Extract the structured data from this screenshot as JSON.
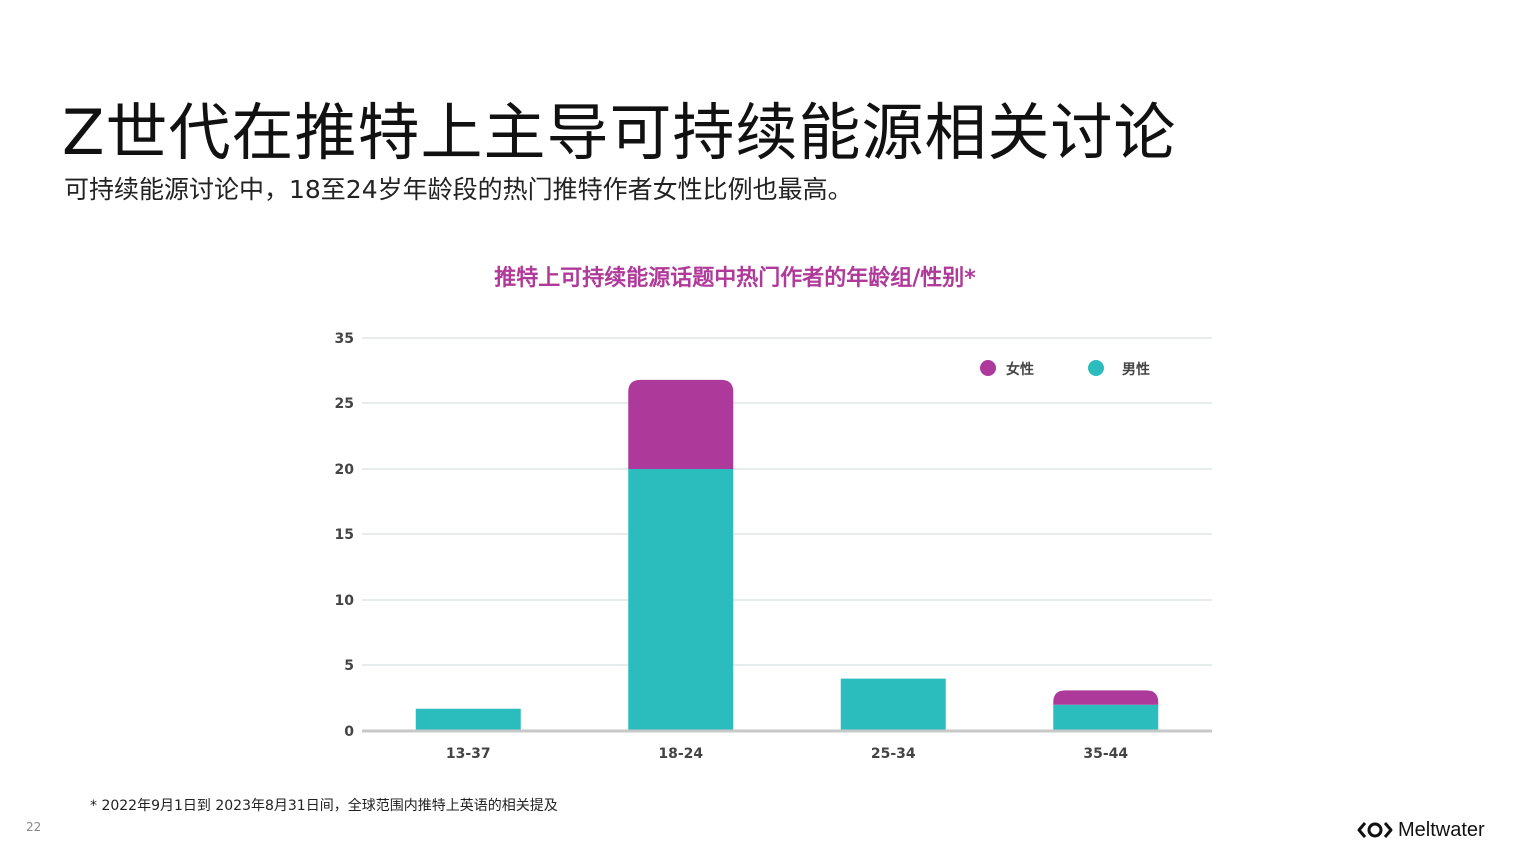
{
  "slide": {
    "title": "Z世代在推特上主导可持续能源相关讨论",
    "subtitle": "可持续能源讨论中，18至24岁年龄段的热门推特作者女性比例也最高。",
    "footnote": "* 2022年9月1日到 2023年8月31日间，全球范围内推特上英语的相关提及",
    "page_number": "22",
    "brand": "Meltwater"
  },
  "colors": {
    "female": "#ad3a9b",
    "male": "#2bbdbd",
    "title_accent": "#b03a9a",
    "grid": "#e6ecec",
    "axis": "#c8c8c8"
  },
  "chart_data": {
    "type": "bar",
    "stacked": true,
    "title": "推特上可持续能源话题中热门作者的年龄组/性别*",
    "categories": [
      "13-37",
      "18-24",
      "25-34",
      "35-44"
    ],
    "series": [
      {
        "name": "男性",
        "color": "#2bbdbd",
        "values": [
          1.7,
          20,
          4,
          2
        ]
      },
      {
        "name": "女性",
        "color": "#ad3a9b",
        "values": [
          0,
          6.8,
          0,
          1.1
        ]
      }
    ],
    "y_ticks": [
      "0",
      "5",
      "10",
      "15",
      "20",
      "25",
      "35"
    ],
    "legend_order": [
      "女性",
      "男性"
    ],
    "legend_position": "top-right",
    "grid": true
  }
}
